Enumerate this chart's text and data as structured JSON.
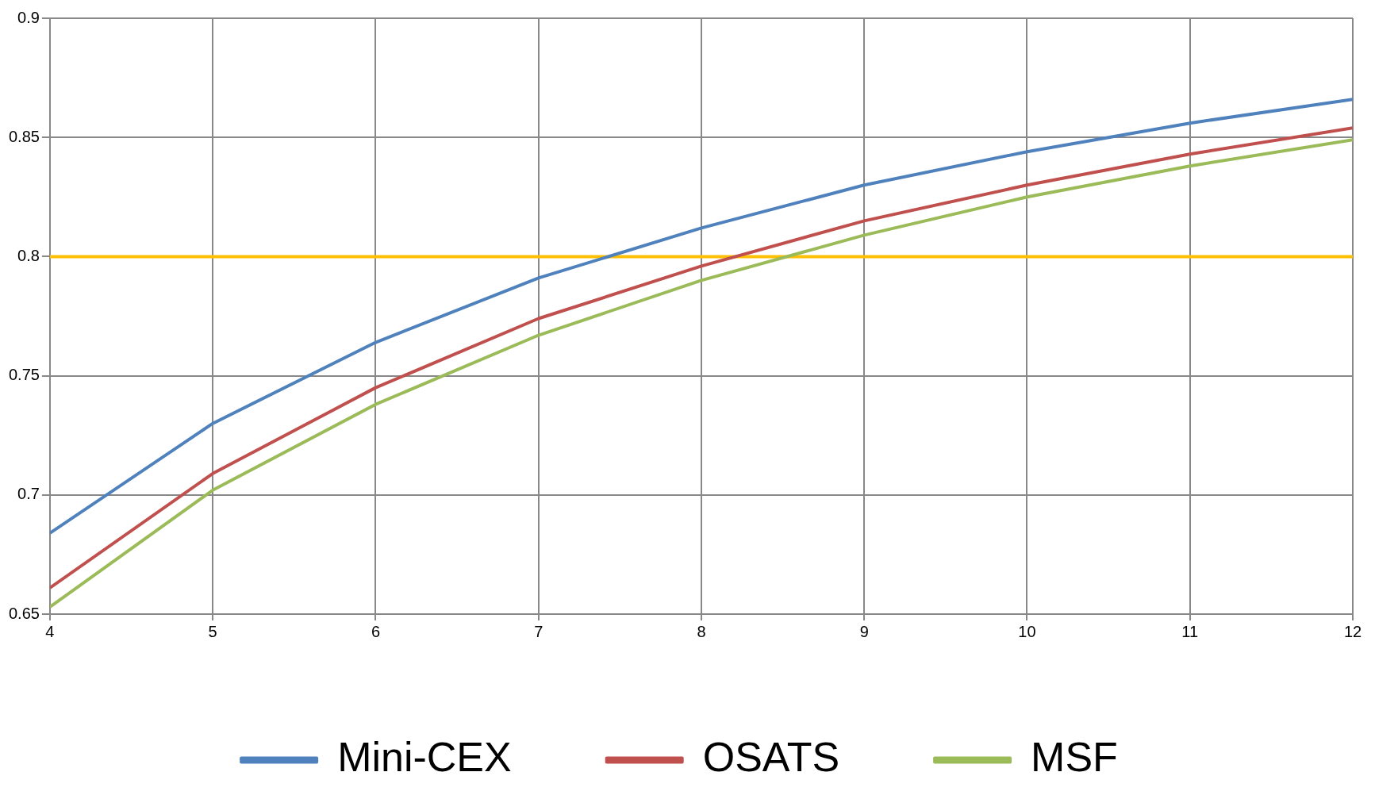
{
  "chart_data": {
    "type": "line",
    "x": [
      4,
      5,
      6,
      7,
      8,
      9,
      10,
      11,
      12
    ],
    "series": [
      {
        "name": "Mini-CEX",
        "color": "#4f81bd",
        "values": [
          0.684,
          0.73,
          0.764,
          0.791,
          0.812,
          0.83,
          0.844,
          0.856,
          0.866
        ]
      },
      {
        "name": "OSATS",
        "color": "#c0504d",
        "values": [
          0.661,
          0.709,
          0.745,
          0.774,
          0.796,
          0.815,
          0.83,
          0.843,
          0.854
        ]
      },
      {
        "name": "MSF",
        "color": "#9bbb59",
        "values": [
          0.653,
          0.702,
          0.738,
          0.767,
          0.79,
          0.809,
          0.825,
          0.838,
          0.849
        ]
      }
    ],
    "xlim": [
      4,
      12
    ],
    "xticks": [
      4,
      5,
      6,
      7,
      8,
      9,
      10,
      11,
      12
    ],
    "ylim": [
      0.65,
      0.9
    ],
    "yticks": [
      0.65,
      0.7,
      0.75,
      0.8,
      0.85,
      0.9
    ],
    "ref_lines": [
      {
        "axis": "y",
        "value": 0.8,
        "color": "#ffc000"
      }
    ],
    "grid": true,
    "legend": "bottom",
    "marker": "none",
    "line_style": "solid"
  }
}
